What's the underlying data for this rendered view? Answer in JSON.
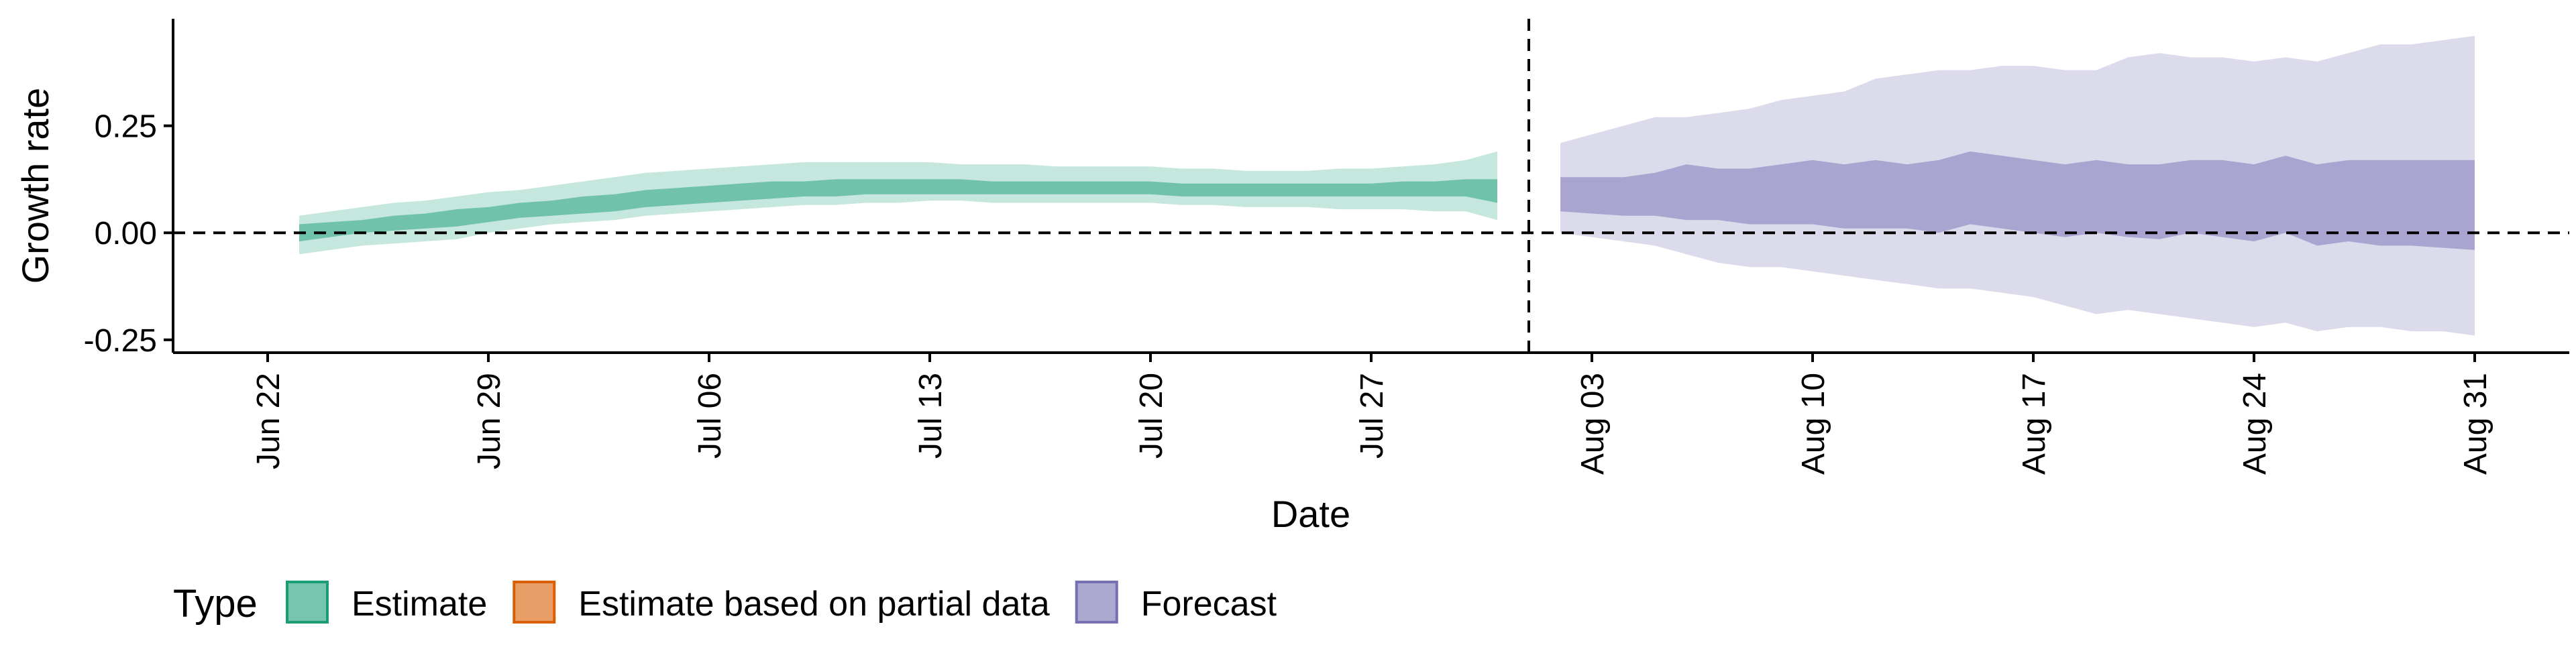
{
  "chart_data": {
    "type": "area",
    "title": "",
    "xlabel": "Date",
    "ylabel": "Growth rate",
    "x_ticks": [
      "Jun 22",
      "Jun 29",
      "Jul 06",
      "Jul 13",
      "Jul 20",
      "Jul 27",
      "Aug 03",
      "Aug 10",
      "Aug 17",
      "Aug 24",
      "Aug 31"
    ],
    "y_ticks": [
      "0.25",
      "0.00",
      "-0.25"
    ],
    "ylim": [
      -0.28,
      0.5
    ],
    "xlim": [
      "2020-06-19",
      "2020-09-03"
    ],
    "grid": false,
    "legend": {
      "position": "bottom",
      "title": "Type",
      "entries": [
        {
          "label": "Estimate",
          "fill": "#1b9e77",
          "border": "#1b9e77"
        },
        {
          "label": "Estimate based on partial data",
          "fill": "#d95f02",
          "border": "#d95f02"
        },
        {
          "label": "Forecast",
          "fill": "#7570b3",
          "border": "#7570b3"
        }
      ]
    },
    "reference_lines": {
      "horizontal_y": 0,
      "vertical_date": "2020-08-01"
    },
    "series": [
      {
        "name": "Estimate",
        "color": "#1b9e77",
        "x": [
          "2020-06-23",
          "2020-06-24",
          "2020-06-25",
          "2020-06-26",
          "2020-06-27",
          "2020-06-28",
          "2020-06-29",
          "2020-06-30",
          "2020-07-01",
          "2020-07-02",
          "2020-07-03",
          "2020-07-04",
          "2020-07-05",
          "2020-07-06",
          "2020-07-07",
          "2020-07-08",
          "2020-07-09",
          "2020-07-10",
          "2020-07-11",
          "2020-07-12",
          "2020-07-13",
          "2020-07-14",
          "2020-07-15",
          "2020-07-16",
          "2020-07-17",
          "2020-07-18",
          "2020-07-19",
          "2020-07-20",
          "2020-07-21",
          "2020-07-22",
          "2020-07-23",
          "2020-07-24",
          "2020-07-25",
          "2020-07-26",
          "2020-07-27",
          "2020-07-28",
          "2020-07-29",
          "2020-07-30",
          "2020-07-31"
        ],
        "lower_90": [
          -0.05,
          -0.04,
          -0.03,
          -0.025,
          -0.02,
          -0.015,
          0.0,
          0.01,
          0.02,
          0.025,
          0.03,
          0.04,
          0.045,
          0.05,
          0.055,
          0.06,
          0.065,
          0.065,
          0.07,
          0.07,
          0.075,
          0.075,
          0.07,
          0.07,
          0.07,
          0.07,
          0.07,
          0.07,
          0.065,
          0.065,
          0.06,
          0.06,
          0.06,
          0.055,
          0.055,
          0.055,
          0.05,
          0.05,
          0.03
        ],
        "upper_90": [
          0.04,
          0.05,
          0.06,
          0.07,
          0.075,
          0.085,
          0.095,
          0.1,
          0.11,
          0.12,
          0.13,
          0.14,
          0.145,
          0.15,
          0.155,
          0.16,
          0.165,
          0.165,
          0.165,
          0.165,
          0.165,
          0.16,
          0.16,
          0.16,
          0.155,
          0.155,
          0.155,
          0.155,
          0.15,
          0.15,
          0.145,
          0.145,
          0.145,
          0.15,
          0.15,
          0.155,
          0.16,
          0.17,
          0.19
        ],
        "lower_50": [
          -0.02,
          -0.01,
          0.0,
          0.005,
          0.01,
          0.015,
          0.025,
          0.035,
          0.04,
          0.045,
          0.05,
          0.06,
          0.065,
          0.07,
          0.075,
          0.08,
          0.085,
          0.085,
          0.09,
          0.09,
          0.09,
          0.09,
          0.09,
          0.09,
          0.09,
          0.09,
          0.09,
          0.09,
          0.085,
          0.085,
          0.085,
          0.085,
          0.085,
          0.085,
          0.085,
          0.085,
          0.085,
          0.085,
          0.07
        ],
        "upper_50": [
          0.02,
          0.025,
          0.03,
          0.04,
          0.045,
          0.055,
          0.06,
          0.07,
          0.075,
          0.085,
          0.09,
          0.1,
          0.105,
          0.11,
          0.115,
          0.12,
          0.12,
          0.125,
          0.125,
          0.125,
          0.125,
          0.125,
          0.12,
          0.12,
          0.12,
          0.12,
          0.12,
          0.12,
          0.115,
          0.115,
          0.115,
          0.115,
          0.115,
          0.115,
          0.115,
          0.12,
          0.12,
          0.125,
          0.125
        ]
      },
      {
        "name": "Forecast",
        "color": "#7570b3",
        "x": [
          "2020-08-02",
          "2020-08-03",
          "2020-08-04",
          "2020-08-05",
          "2020-08-06",
          "2020-08-07",
          "2020-08-08",
          "2020-08-09",
          "2020-08-10",
          "2020-08-11",
          "2020-08-12",
          "2020-08-13",
          "2020-08-14",
          "2020-08-15",
          "2020-08-16",
          "2020-08-17",
          "2020-08-18",
          "2020-08-19",
          "2020-08-20",
          "2020-08-21",
          "2020-08-22",
          "2020-08-23",
          "2020-08-24",
          "2020-08-25",
          "2020-08-26",
          "2020-08-27",
          "2020-08-28",
          "2020-08-29",
          "2020-08-30",
          "2020-08-31"
        ],
        "lower_90": [
          0.0,
          -0.01,
          -0.02,
          -0.03,
          -0.05,
          -0.07,
          -0.08,
          -0.08,
          -0.09,
          -0.1,
          -0.11,
          -0.12,
          -0.13,
          -0.13,
          -0.14,
          -0.15,
          -0.17,
          -0.19,
          -0.18,
          -0.19,
          -0.2,
          -0.21,
          -0.22,
          -0.21,
          -0.23,
          -0.22,
          -0.22,
          -0.23,
          -0.23,
          -0.24
        ],
        "upper_90": [
          0.21,
          0.23,
          0.25,
          0.27,
          0.27,
          0.28,
          0.29,
          0.31,
          0.32,
          0.33,
          0.36,
          0.37,
          0.38,
          0.38,
          0.39,
          0.39,
          0.38,
          0.38,
          0.41,
          0.42,
          0.41,
          0.41,
          0.4,
          0.41,
          0.4,
          0.42,
          0.44,
          0.44,
          0.45,
          0.46
        ],
        "lower_50": [
          0.05,
          0.045,
          0.04,
          0.04,
          0.03,
          0.03,
          0.02,
          0.02,
          0.02,
          0.01,
          0.01,
          0.01,
          0.0,
          0.02,
          0.01,
          0.0,
          -0.01,
          0.0,
          -0.01,
          -0.015,
          0.0,
          -0.01,
          -0.02,
          0.0,
          -0.03,
          -0.02,
          -0.03,
          -0.03,
          -0.035,
          -0.04
        ],
        "upper_50": [
          0.13,
          0.13,
          0.13,
          0.14,
          0.16,
          0.15,
          0.15,
          0.16,
          0.17,
          0.16,
          0.17,
          0.16,
          0.17,
          0.19,
          0.18,
          0.17,
          0.16,
          0.17,
          0.16,
          0.16,
          0.17,
          0.17,
          0.16,
          0.18,
          0.16,
          0.17,
          0.17,
          0.17,
          0.17,
          0.17
        ]
      }
    ]
  }
}
